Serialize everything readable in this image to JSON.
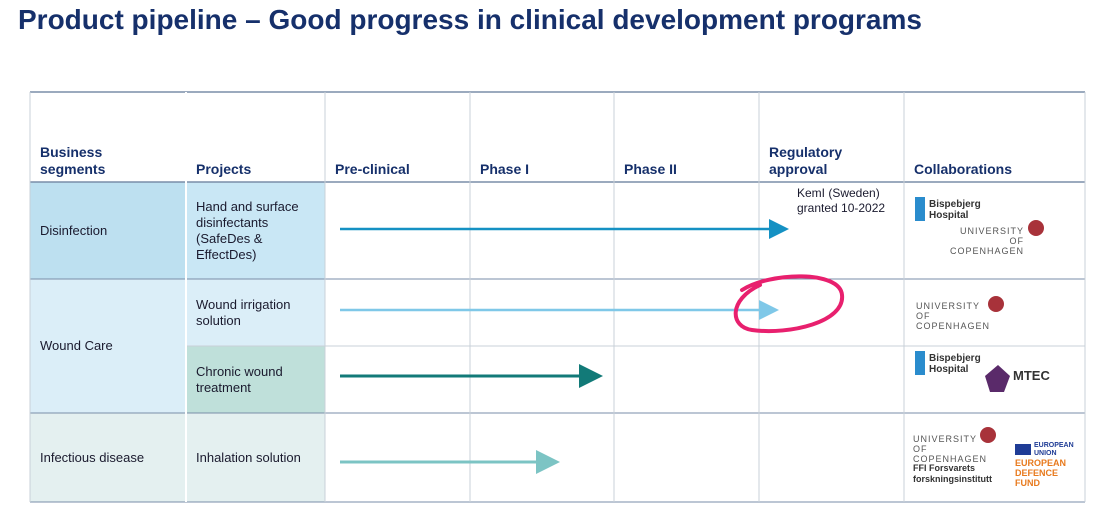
{
  "title": "Product pipeline – Good progress in clinical development programs",
  "table": {
    "headers": [
      "Business segments",
      "Projects",
      "Pre-clinical",
      "Phase I",
      "Phase II",
      "Regulatory approval",
      "Collaborations"
    ],
    "segments": [
      "Disinfection",
      "Wound Care",
      "Infectious disease"
    ],
    "rows": [
      {
        "project": "Hand and surface disinfectants (SafeDes & EffectDes)",
        "note": "KemI (Sweden) granted 10-2022",
        "collaborations": [
          "Bispebjerg Hospital",
          "UNIVERSITY OF COPENHAGEN"
        ]
      },
      {
        "project": "Wound irrigation solution",
        "collaborations": [
          "UNIVERSITY OF COPENHAGEN"
        ]
      },
      {
        "project": "Chronic wound treatment",
        "collaborations": [
          "Bispebjerg Hospital",
          "MTEC"
        ]
      },
      {
        "project": "Inhalation solution",
        "collaborations": [
          "UNIVERSITY OF COPENHAGEN",
          "FFI Forsvarets forskningsinstitutt",
          "EUROPEAN UNION",
          "EUROPEAN DEFENCE FUND"
        ]
      }
    ]
  }
}
